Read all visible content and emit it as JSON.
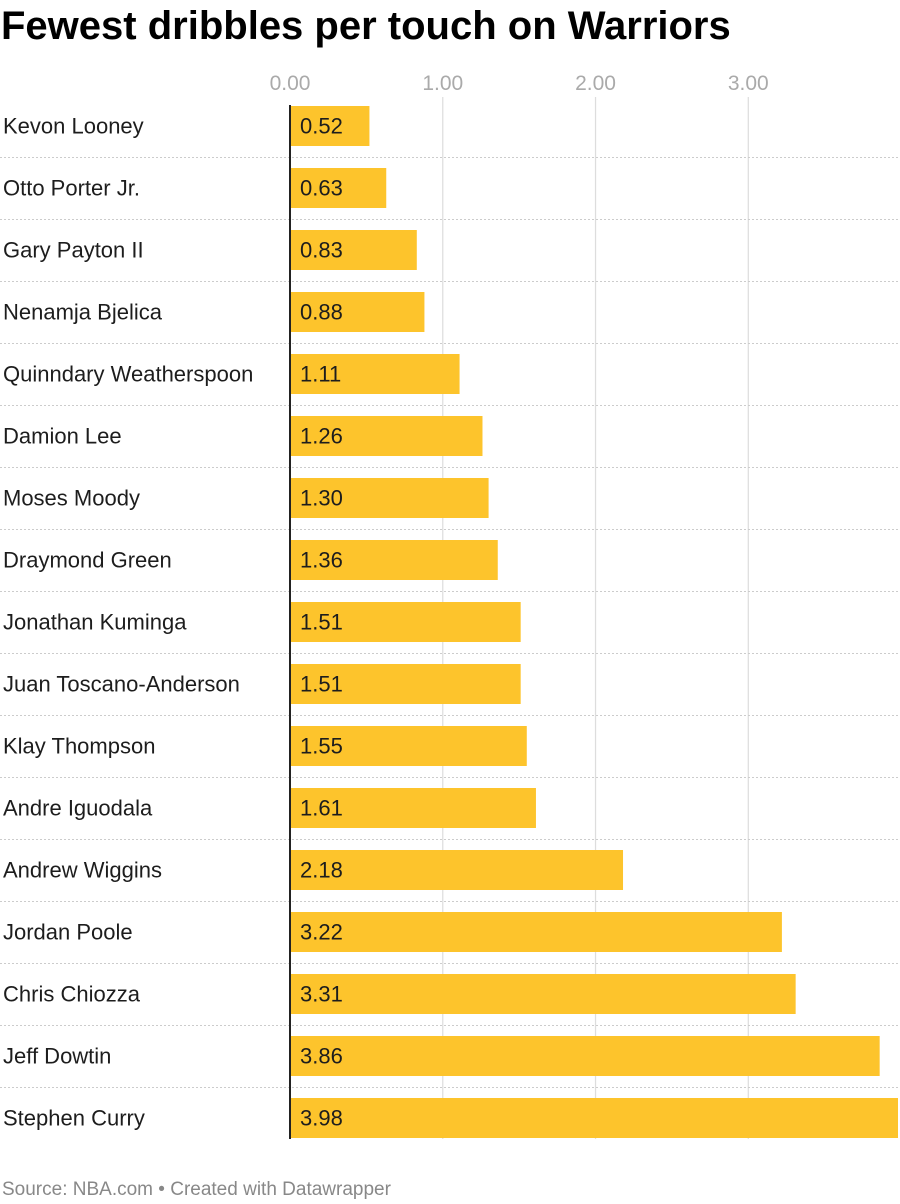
{
  "title": "Fewest dribbles per touch on Warriors",
  "footer": {
    "source": "Source: NBA.com",
    "separator": " • ",
    "credit": "Created with Datawrapper"
  },
  "colors": {
    "bar": "#fdc42c",
    "grid": "#dddddd",
    "baseline": "#222222",
    "row_separator": "#cccccc",
    "tick_label": "#aaaaaa",
    "category_label": "#1d1d1d",
    "value_label": "#1d1d1d",
    "footer": "#888888"
  },
  "chart_data": {
    "type": "bar",
    "orientation": "horizontal",
    "title": "Fewest dribbles per touch on Warriors",
    "xlabel": "",
    "ylabel": "",
    "categories": [
      "Kevon Looney",
      "Otto Porter Jr.",
      "Gary Payton II",
      "Nenamja Bjelica",
      "Quinndary Weatherspoon",
      "Damion Lee",
      "Moses Moody",
      "Draymond Green",
      "Jonathan Kuminga",
      "Juan Toscano-Anderson",
      "Klay Thompson",
      "Andre Iguodala",
      "Andrew Wiggins",
      "Jordan Poole",
      "Chris Chiozza",
      "Jeff Dowtin",
      "Stephen Curry"
    ],
    "values": [
      0.52,
      0.63,
      0.83,
      0.88,
      1.11,
      1.26,
      1.3,
      1.36,
      1.51,
      1.51,
      1.55,
      1.61,
      2.18,
      3.22,
      3.31,
      3.86,
      3.98
    ],
    "value_labels": [
      "0.52",
      "0.63",
      "0.83",
      "0.88",
      "1.11",
      "1.26",
      "1.30",
      "1.36",
      "1.51",
      "1.51",
      "1.55",
      "1.61",
      "2.18",
      "3.22",
      "3.31",
      "3.86",
      "3.98"
    ],
    "xlim": [
      0,
      3.98
    ],
    "ticks": [
      0,
      1,
      2,
      3
    ],
    "tick_labels": [
      "0.00",
      "1.00",
      "2.00",
      "3.00"
    ],
    "grid": true,
    "tick_position": "top",
    "value_label_position": "inside-left"
  }
}
